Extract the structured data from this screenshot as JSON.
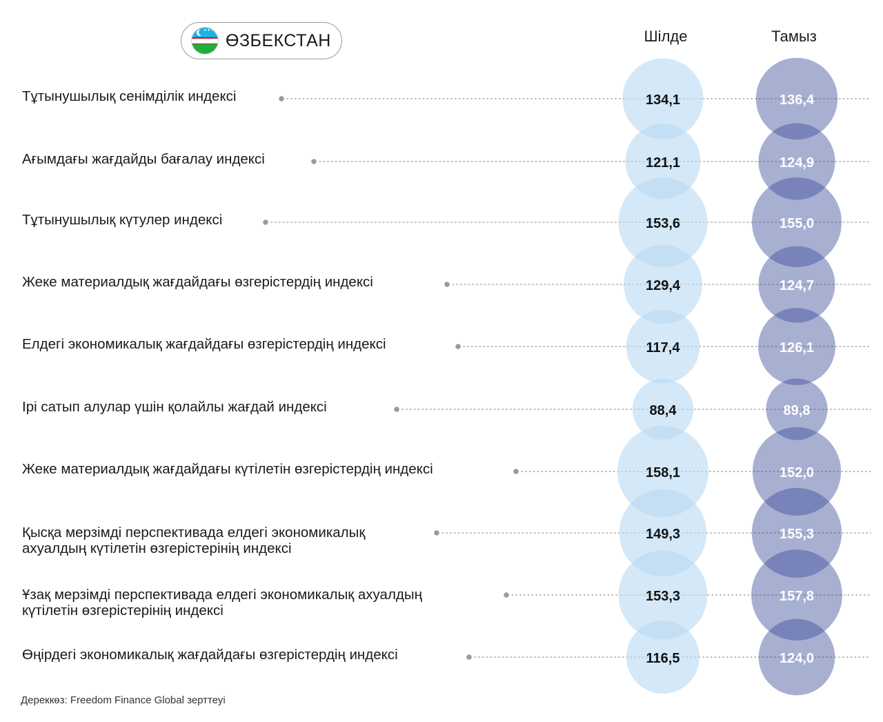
{
  "header": {
    "country": "ӨЗБЕКСТАН",
    "flag_icon": "uzbekistan-flag-icon",
    "flag_stars": "★★★★★★★★★★★★"
  },
  "chart_data": {
    "type": "bubble",
    "series": [
      {
        "name": "Шілде",
        "color": "#b9daf2",
        "text_color": "#111111",
        "values": [
          134.1,
          121.1,
          153.6,
          129.4,
          117.4,
          88.4,
          158.1,
          149.3,
          153.3,
          116.5
        ],
        "labels": [
          "134,1",
          "121,1",
          "153,6",
          "129,4",
          "117,4",
          "88,4",
          "158,1",
          "149,3",
          "153,3",
          "116,5"
        ]
      },
      {
        "name": "Тамыз",
        "color": "#3f4f9b",
        "text_color": "#ffffff",
        "values": [
          136.4,
          124.9,
          155.0,
          124.7,
          126.1,
          89.8,
          152.0,
          155.3,
          157.8,
          124.0
        ],
        "labels": [
          "136,4",
          "124,9",
          "155,0",
          "124,7",
          "126,1",
          "89,8",
          "152,0",
          "155,3",
          "157,8",
          "124,0"
        ]
      }
    ],
    "categories": [
      "Тұтынушылық сенімділік индексі",
      "Ағымдағы жағдайды бағалау индексі",
      "Тұтынушылық күтулер индексі",
      "Жеке материалдық жағдайдағы өзгерістердің индексі",
      "Елдегі экономикалық жағдайдағы өзгерістердің индексі",
      "Ірі сатып алулар үшін қолайлы жағдай индексі",
      "Жеке материалдық жағдайдағы күтілетін өзгерістердің индексі",
      "Қысқа мерзімді перспективада елдегі экономикалық ахуалдың күтілетін өзгерістерінің индексі",
      "Ұзақ мерзімді перспективада елдегі экономикалық ахуалдың күтілетін өзгерістерінің индексі",
      "Өңірдегі экономикалық жағдайдағы өзгерістердің индексі"
    ],
    "category_lines": [
      [
        "Тұтынушылық сенімділік индексі"
      ],
      [
        "Ағымдағы жағдайды бағалау индексі"
      ],
      [
        "Тұтынушылық күтулер индексі"
      ],
      [
        "Жеке материалдық жағдайдағы өзгерістердің индексі"
      ],
      [
        "Елдегі экономикалық жағдайдағы өзгерістердің индексі"
      ],
      [
        "Ірі сатып алулар үшін қолайлы жағдай индексі"
      ],
      [
        "Жеке материалдық жағдайдағы күтілетін өзгерістердің индексі"
      ],
      [
        "Қысқа мерзімді перспективада елдегі экономикалық",
        "ахуалдың күтілетін өзгерістерінің индексі"
      ],
      [
        "Ұзақ мерзімді перспективада елдегі экономикалық ахуалдың",
        "күтілетін өзгерістерінің индексі"
      ],
      [
        "Өңірдегі экономикалық жағдайдағы өзгерістердің индексі"
      ]
    ],
    "dot_color": "#9a9a9a"
  },
  "source": "Дереккөз: Freedom Finance Global зерттеуі"
}
